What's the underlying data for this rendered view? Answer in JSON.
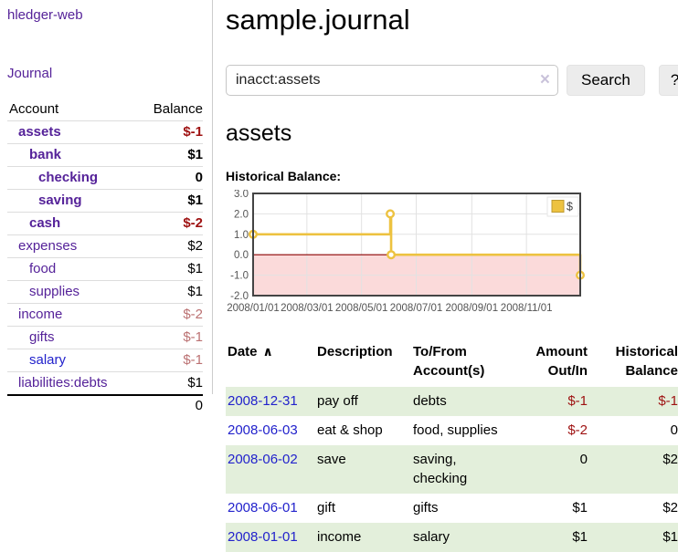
{
  "colors": {
    "link_purple": "#552299",
    "link_blue": "#2222cc",
    "negative_strong": "#9e1111",
    "negative_muted": "#bb7172",
    "row_stripe_green": "#e3efdb",
    "chart_line_gold": "#edc240",
    "chart_negative_region": "#fbdada",
    "chart_zero_line": "#8b0000"
  },
  "sidebar": {
    "app_title": "hledger-web",
    "nav": {
      "journal": "Journal"
    },
    "accounts_table": {
      "headers": {
        "account": "Account",
        "balance": "Balance"
      },
      "rows": [
        {
          "name": "assets",
          "balance": "$-1",
          "indent": 1,
          "bold": true,
          "balance_style": "neg-strong"
        },
        {
          "name": "bank",
          "balance": "$1",
          "indent": 2,
          "bold": true,
          "balance_style": "normal"
        },
        {
          "name": "checking",
          "balance": "0",
          "indent": 3,
          "bold": true,
          "balance_style": "normal"
        },
        {
          "name": "saving",
          "balance": "$1",
          "indent": 3,
          "bold": true,
          "balance_style": "normal"
        },
        {
          "name": "cash",
          "balance": "$-2",
          "indent": 2,
          "bold": true,
          "balance_style": "neg-strong"
        },
        {
          "name": "expenses",
          "balance": "$2",
          "indent": 1,
          "bold": false,
          "balance_style": "normal"
        },
        {
          "name": "food",
          "balance": "$1",
          "indent": 2,
          "bold": false,
          "balance_style": "normal"
        },
        {
          "name": "supplies",
          "balance": "$1",
          "indent": 2,
          "bold": false,
          "balance_style": "normal"
        },
        {
          "name": "income",
          "balance": "$-2",
          "indent": 1,
          "bold": false,
          "balance_style": "neg-muted"
        },
        {
          "name": "gifts",
          "balance": "$-1",
          "indent": 2,
          "bold": false,
          "balance_style": "neg-muted"
        },
        {
          "name": "salary",
          "balance": "$-1",
          "indent": 2,
          "bold": false,
          "balance_style": "neg-muted",
          "link_color": "blue"
        },
        {
          "name": "liabilities:debts",
          "balance": "$1",
          "indent": 1,
          "bold": false,
          "balance_style": "normal"
        }
      ],
      "total": "0"
    }
  },
  "header": {
    "title": "sample.journal"
  },
  "search": {
    "value": "inacct:assets",
    "clear_icon": "×",
    "search_label": "Search",
    "help_label": "?"
  },
  "account_page": {
    "heading": "assets",
    "chart_label": "Historical Balance:"
  },
  "chart_data": {
    "type": "line",
    "step": true,
    "title": "Historical Balance",
    "legend": {
      "label": "$",
      "position": "top-right"
    },
    "series": [
      {
        "name": "$",
        "color": "#edc240",
        "points": [
          {
            "date": "2008-01-01",
            "value": 1
          },
          {
            "date": "2008-06-02",
            "value": 2
          },
          {
            "date": "2008-06-03",
            "value": 0
          },
          {
            "date": "2008-12-31",
            "value": -1
          }
        ]
      }
    ],
    "x_range": [
      "2008-01-01",
      "2008-12-31"
    ],
    "y_lim": [
      -2,
      3
    ],
    "y_ticks": [
      3.0,
      2.0,
      1.0,
      0.0,
      -1.0,
      -2.0
    ],
    "x_ticks": [
      {
        "label": "2008/01/01",
        "date": "2008-01-01"
      },
      {
        "label": "2008/03/01",
        "date": "2008-03-01"
      },
      {
        "label": "2008/05/01",
        "date": "2008-05-01"
      },
      {
        "label": "2008/07/01",
        "date": "2008-07-01"
      },
      {
        "label": "2008/09/01",
        "date": "2008-09-01"
      },
      {
        "label": "2008/11/01",
        "date": "2008-11-01"
      }
    ],
    "grid": true,
    "marker": "open-circle",
    "negative_region_color": "#fbdada",
    "zero_line_color": "#8b0000"
  },
  "register": {
    "sort_icon": "∧",
    "columns": [
      {
        "id": "date",
        "lines": [
          "Date"
        ],
        "align": "left",
        "sort": "asc"
      },
      {
        "id": "description",
        "lines": [
          "Description"
        ],
        "align": "left"
      },
      {
        "id": "accounts",
        "lines": [
          "To/From",
          "Account(s)"
        ],
        "align": "left"
      },
      {
        "id": "amount",
        "lines": [
          "Amount",
          "Out/In"
        ],
        "align": "right"
      },
      {
        "id": "balance",
        "lines": [
          "Historical",
          "Balance"
        ],
        "align": "right"
      }
    ],
    "rows": [
      {
        "date": "2008-12-31",
        "description": "pay off",
        "accounts": [
          "debts"
        ],
        "amount": {
          "text": "$-1",
          "negative": true
        },
        "balance": {
          "text": "$-1",
          "negative": true
        }
      },
      {
        "date": "2008-06-03",
        "description": "eat & shop",
        "accounts": [
          "food, supplies"
        ],
        "amount": {
          "text": "$-2",
          "negative": true
        },
        "balance": {
          "text": "0",
          "negative": false
        }
      },
      {
        "date": "2008-06-02",
        "description": "save",
        "accounts": [
          "saving,",
          "checking"
        ],
        "amount": {
          "text": "0",
          "negative": false
        },
        "balance": {
          "text": "$2",
          "negative": false
        }
      },
      {
        "date": "2008-06-01",
        "description": "gift",
        "accounts": [
          "gifts"
        ],
        "amount": {
          "text": "$1",
          "negative": false
        },
        "balance": {
          "text": "$2",
          "negative": false
        }
      },
      {
        "date": "2008-01-01",
        "description": "income",
        "accounts": [
          "salary"
        ],
        "amount": {
          "text": "$1",
          "negative": false
        },
        "balance": {
          "text": "$1",
          "negative": false
        }
      }
    ]
  }
}
